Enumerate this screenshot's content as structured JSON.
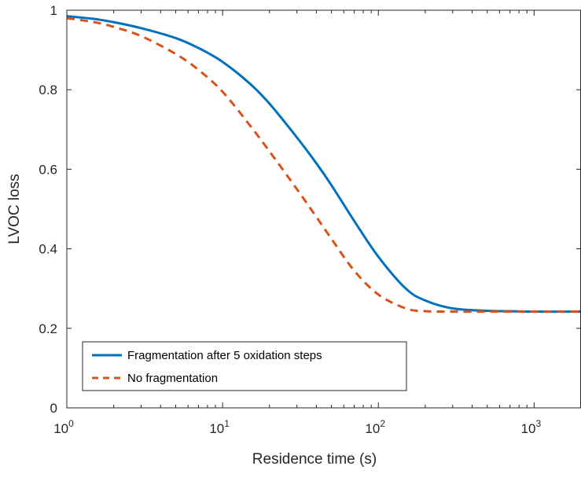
{
  "chart_data": {
    "type": "line",
    "title": "",
    "xlabel": "Residence time (s)",
    "ylabel": "LVOC loss",
    "xscale": "log",
    "xlim": [
      1,
      2000
    ],
    "ylim": [
      0,
      1
    ],
    "grid": false,
    "legend_position": "bottom-left",
    "x_ticks": [
      {
        "base": "10",
        "exp": "0",
        "value": 1
      },
      {
        "base": "10",
        "exp": "1",
        "value": 10
      },
      {
        "base": "10",
        "exp": "2",
        "value": 100
      },
      {
        "base": "10",
        "exp": "3",
        "value": 1000
      }
    ],
    "y_ticks": [
      {
        "label": "0",
        "value": 0
      },
      {
        "label": "0.2",
        "value": 0.2
      },
      {
        "label": "0.4",
        "value": 0.4
      },
      {
        "label": "0.6",
        "value": 0.6
      },
      {
        "label": "0.8",
        "value": 0.8
      },
      {
        "label": "1",
        "value": 1
      }
    ],
    "series": [
      {
        "name": "Fragmentation after 5 oxidation steps",
        "color": "#0072BD",
        "style": "solid",
        "x": [
          1,
          1.5,
          2,
          3,
          5,
          7,
          10,
          15,
          20,
          30,
          40,
          50,
          70,
          100,
          150,
          200,
          300,
          500,
          700,
          1000,
          2000
        ],
        "y": [
          0.985,
          0.978,
          0.97,
          0.955,
          0.93,
          0.905,
          0.87,
          0.815,
          0.765,
          0.68,
          0.615,
          0.56,
          0.47,
          0.38,
          0.3,
          0.27,
          0.25,
          0.244,
          0.243,
          0.242,
          0.242
        ]
      },
      {
        "name": "No fragmentation",
        "color": "#D95319",
        "style": "dashed",
        "x": [
          1,
          1.5,
          2,
          3,
          5,
          7,
          10,
          15,
          20,
          30,
          40,
          50,
          70,
          100,
          150,
          200,
          300,
          500,
          700,
          1000,
          2000
        ],
        "y": [
          0.98,
          0.97,
          0.958,
          0.935,
          0.89,
          0.85,
          0.795,
          0.71,
          0.645,
          0.55,
          0.48,
          0.425,
          0.345,
          0.285,
          0.25,
          0.243,
          0.242,
          0.242,
          0.242,
          0.242,
          0.242
        ]
      }
    ]
  }
}
